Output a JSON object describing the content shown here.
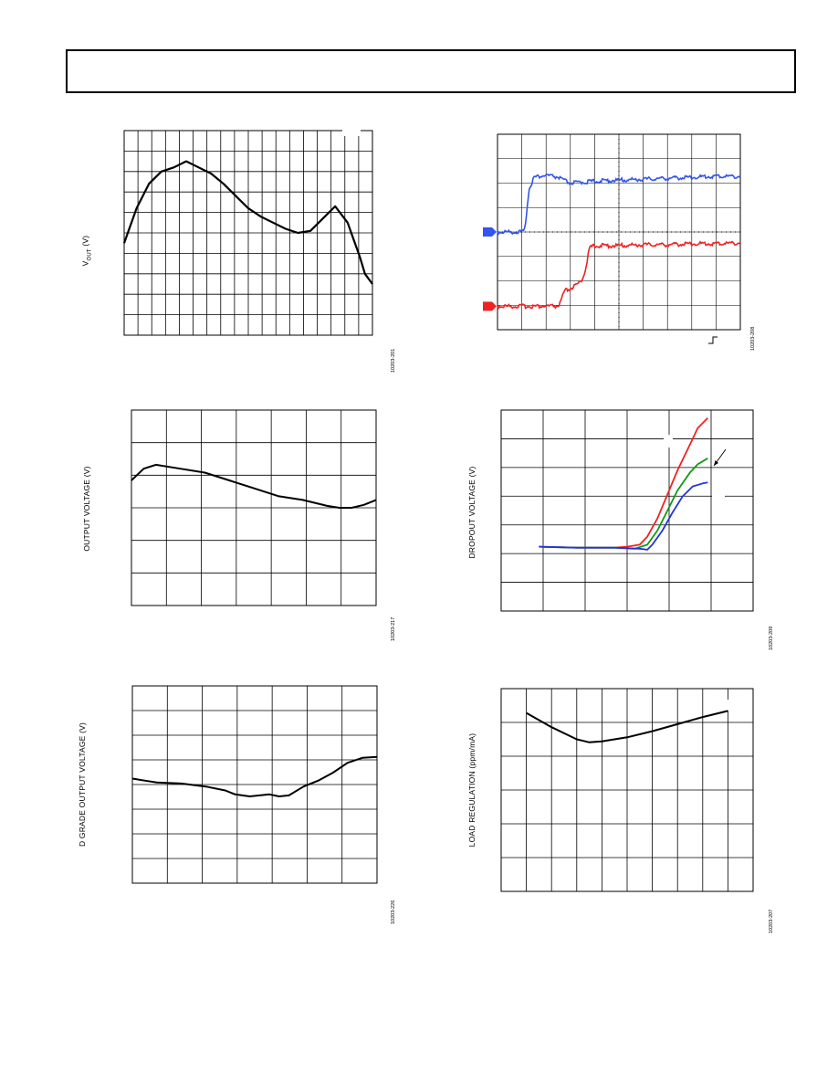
{
  "page": {
    "header_box": ""
  },
  "charts": [
    {
      "id": "vout-chart",
      "ylabel_main": "V",
      "ylabel_sub": "OUT",
      "ylabel_unit": " (V)",
      "figure_code": "10203-201",
      "color": "#000000"
    },
    {
      "id": "transient-chart",
      "figure_code": "10203-208",
      "ch1_color": "#3355ee",
      "ch2_color": "#ee2222"
    },
    {
      "id": "output-voltage-chart",
      "ylabel": "OUTPUT VOLTAGE (V)",
      "figure_code": "10203-217",
      "color": "#000000"
    },
    {
      "id": "dropout-chart",
      "ylabel": "DROPOUT VOLTAGE (V)",
      "figure_code": "10203-209",
      "colors": [
        "#ee2222",
        "#119911",
        "#2233dd"
      ]
    },
    {
      "id": "dgrade-chart",
      "ylabel": "D GRADE OUTPUT VOLTAGE (V)",
      "figure_code": "10203-226",
      "color": "#000000"
    },
    {
      "id": "load-reg-chart",
      "ylabel": "LOAD REGULATION (ppm/mA)",
      "figure_code": "10203-207",
      "color": "#000000"
    }
  ],
  "chart_data": [
    {
      "type": "line",
      "title": "",
      "xlabel": "",
      "ylabel": "VOUT (V)",
      "grid": true,
      "xlim": [
        0,
        100
      ],
      "ylim": [
        0,
        100
      ],
      "series": [
        {
          "x": [
            0,
            5,
            10,
            15,
            20,
            25,
            30,
            35,
            40,
            45,
            50,
            55,
            60,
            65,
            70,
            75,
            80,
            85,
            90,
            95,
            97,
            100
          ],
          "y": [
            45,
            62,
            74,
            80,
            82,
            85,
            82,
            79,
            74,
            68,
            62,
            58,
            55,
            52,
            50,
            51,
            57,
            63,
            55,
            38,
            30,
            25
          ]
        }
      ]
    },
    {
      "type": "line",
      "title": "",
      "xlabel": "",
      "ylabel": "",
      "grid": true,
      "xlim": [
        0,
        100
      ],
      "ylim": [
        0,
        100
      ],
      "series": [
        {
          "x": [
            0,
            11,
            12,
            13,
            15,
            20,
            25,
            28,
            30,
            35,
            40,
            50,
            60,
            70,
            80,
            90,
            100
          ],
          "y": [
            50,
            50,
            60,
            72,
            78,
            79,
            78,
            76,
            75,
            75.5,
            76,
            76.5,
            77,
            77.5,
            78,
            78.5,
            78.5
          ]
        },
        {
          "x": [
            0,
            25,
            26,
            27,
            28,
            30,
            33,
            35,
            36,
            37,
            38,
            40,
            50,
            60,
            70,
            80,
            90,
            100
          ],
          "y": [
            12,
            12,
            14,
            18,
            20,
            21,
            23,
            26,
            30,
            36,
            42,
            43,
            43,
            43.5,
            43.5,
            44,
            44,
            44.5
          ]
        }
      ]
    },
    {
      "type": "line",
      "title": "",
      "xlabel": "",
      "ylabel": "OUTPUT VOLTAGE (V)",
      "grid": true,
      "xlim": [
        0,
        100
      ],
      "ylim": [
        0,
        100
      ],
      "series": [
        {
          "x": [
            0,
            5,
            10,
            20,
            30,
            40,
            50,
            60,
            70,
            80,
            85,
            90,
            95,
            100
          ],
          "y": [
            64,
            70,
            72,
            70,
            68,
            64,
            60,
            56,
            54,
            51,
            50,
            50,
            51.5,
            54
          ]
        }
      ]
    },
    {
      "type": "line",
      "title": "",
      "xlabel": "",
      "ylabel": "DROPOUT VOLTAGE (V)",
      "grid": true,
      "xlim": [
        0,
        100
      ],
      "ylim": [
        0,
        100
      ],
      "series": [
        {
          "x": [
            15,
            30,
            45,
            50,
            55,
            58,
            62,
            66,
            70,
            75,
            78,
            82
          ],
          "y": [
            32,
            31.5,
            31.5,
            32,
            33,
            37,
            46,
            58,
            70,
            83,
            91,
            96
          ]
        },
        {
          "x": [
            15,
            30,
            45,
            53,
            58,
            62,
            66,
            70,
            75,
            78,
            82
          ],
          "y": [
            32,
            31.5,
            31.5,
            31,
            33,
            40,
            50,
            60,
            69,
            73,
            76
          ]
        },
        {
          "x": [
            15,
            30,
            45,
            55,
            58,
            60,
            64,
            68,
            72,
            76,
            80,
            82
          ],
          "y": [
            32,
            31.5,
            31.5,
            31,
            30.5,
            33,
            40,
            49,
            57,
            62,
            63.5,
            64
          ]
        }
      ]
    },
    {
      "type": "line",
      "title": "",
      "xlabel": "",
      "ylabel": "D GRADE OUTPUT VOLTAGE (V)",
      "grid": true,
      "xlim": [
        0,
        100
      ],
      "ylim": [
        0,
        100
      ],
      "series": [
        {
          "x": [
            0,
            5,
            10,
            20,
            30,
            38,
            42,
            48,
            52,
            56,
            60,
            64,
            70,
            76,
            82,
            88,
            94,
            100
          ],
          "y": [
            53,
            52,
            51,
            50.5,
            49,
            47,
            45,
            44,
            44.5,
            45,
            44,
            44.5,
            49,
            52,
            56,
            61,
            63.5,
            64
          ]
        }
      ]
    },
    {
      "type": "line",
      "title": "",
      "xlabel": "",
      "ylabel": "LOAD REGULATION (ppm/mA)",
      "grid": true,
      "xlim": [
        0,
        100
      ],
      "ylim": [
        0,
        100
      ],
      "series": [
        {
          "x": [
            10,
            20,
            30,
            35,
            40,
            50,
            60,
            70,
            80,
            90
          ],
          "y": [
            88,
            81,
            75,
            73.5,
            74,
            76,
            79,
            82.5,
            86,
            89
          ]
        }
      ]
    }
  ]
}
